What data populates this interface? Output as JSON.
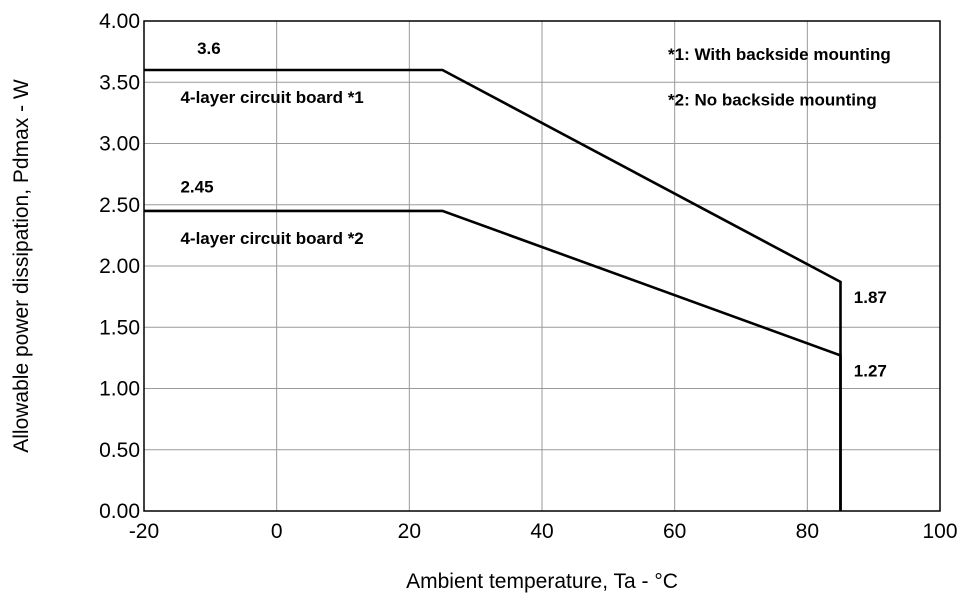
{
  "chart_data": {
    "type": "line",
    "xlabel": "Ambient temperature, Ta - °C",
    "ylabel": "Allowable power dissipation, Pdmax - W",
    "xlim": [
      -20,
      100
    ],
    "ylim": [
      0,
      4
    ],
    "x_ticks": [
      "-20",
      "0",
      "20",
      "40",
      "60",
      "80",
      "100"
    ],
    "y_ticks": [
      "0.00",
      "0.50",
      "1.00",
      "1.50",
      "2.00",
      "2.50",
      "3.00",
      "3.50",
      "4.00"
    ],
    "grid": true,
    "series": [
      {
        "name": "4-layer circuit board *1",
        "color": "#000000",
        "points": [
          [
            -20,
            3.6
          ],
          [
            25,
            3.6
          ],
          [
            85,
            1.87
          ],
          [
            85,
            0
          ]
        ]
      },
      {
        "name": "4-layer circuit board *2",
        "color": "#000000",
        "points": [
          [
            -20,
            2.45
          ],
          [
            25,
            2.45
          ],
          [
            85,
            1.27
          ],
          [
            85,
            0
          ]
        ]
      }
    ],
    "annotations": [
      {
        "text": "3.6",
        "x": -12,
        "y": 3.73
      },
      {
        "text": "2.45",
        "x": -14.5,
        "y": 2.6
      },
      {
        "text": "4-layer circuit board *1",
        "x": -14.5,
        "y": 3.33
      },
      {
        "text": "4-layer circuit board *2",
        "x": -14.5,
        "y": 2.18
      },
      {
        "text": "1.87",
        "x": 87,
        "y": 1.7
      },
      {
        "text": "1.27",
        "x": 87,
        "y": 1.1
      },
      {
        "text": "*1: With backside mounting",
        "x": 59,
        "y": 3.68
      },
      {
        "text": "*2: No backside mounting",
        "x": 59,
        "y": 3.31
      }
    ]
  }
}
